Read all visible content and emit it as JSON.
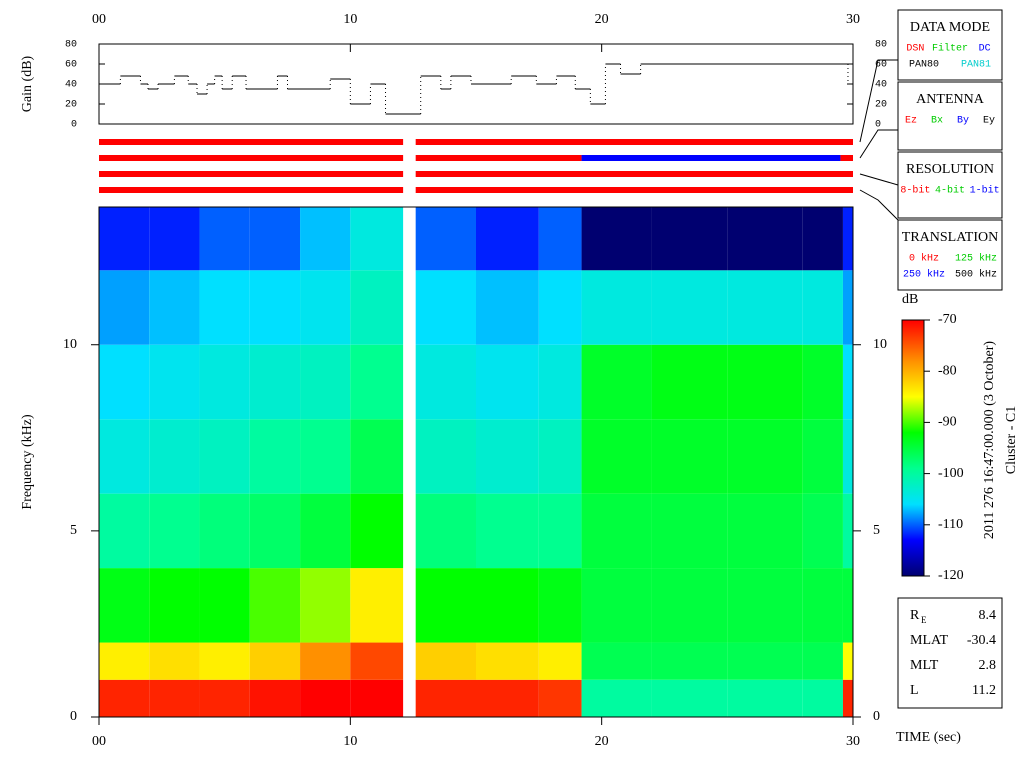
{
  "chart_data": [
    {
      "type": "line",
      "ylabel": "Gain (dB)",
      "x": [
        0,
        0.85,
        1.65,
        1.95,
        2.35,
        3.0,
        3.55,
        3.9,
        4.3,
        4.6,
        4.9,
        5.3,
        5.85,
        7.1,
        7.5,
        9.2,
        10.0,
        10.8,
        11.4,
        12.8,
        13.6,
        14.0,
        14.8,
        16.4,
        17.4,
        18.2,
        18.95,
        19.55,
        20.15,
        20.75,
        21.55,
        29.8
      ],
      "values": [
        40,
        48,
        40,
        35,
        40,
        48,
        40,
        30,
        40,
        48,
        35,
        48,
        35,
        48,
        35,
        45,
        20,
        40,
        10,
        48,
        35,
        48,
        40,
        48,
        40,
        48,
        35,
        20,
        60,
        50,
        60,
        40
      ],
      "color": "#000000",
      "xlim": [
        0,
        30
      ],
      "xticks": [
        {
          "value": 0,
          "label": "00"
        },
        10,
        20,
        30
      ],
      "ylim": [
        0,
        80
      ],
      "yticks": [
        0,
        20,
        40,
        60,
        80
      ]
    },
    {
      "type": "heatmap",
      "ylabel": "Frequency (kHz)",
      "xlabel": "TIME (sec)",
      "xlim": [
        0,
        30
      ],
      "xticks": [
        {
          "value": 0,
          "label": "00"
        },
        10,
        20,
        30
      ],
      "ylim": [
        0,
        13.7
      ],
      "yticks": [
        0,
        5,
        10
      ],
      "x_bins": [
        0,
        2,
        4,
        6,
        8,
        10,
        12.1,
        12.6,
        15,
        17.5,
        19.2,
        22,
        25,
        28,
        29.6,
        30
      ],
      "y_bins": [
        0,
        1,
        2,
        4,
        6,
        8,
        10,
        12,
        13.7
      ],
      "z": [
        [
          -72,
          -84,
          -93,
          -100,
          -104,
          -106,
          -108,
          -112
        ],
        [
          -72,
          -83,
          -92,
          -99,
          -103,
          -105,
          -107,
          -112
        ],
        [
          -72,
          -84,
          -92,
          -98,
          -102,
          -104,
          -106,
          -110
        ],
        [
          -71,
          -82,
          -90,
          -97,
          -100,
          -103,
          -106,
          -110
        ],
        [
          -70,
          -78,
          -88,
          -95,
          -99,
          -102,
          -105,
          -107
        ],
        [
          -70,
          -74,
          -84,
          -92,
          -96,
          -99,
          -102,
          -104
        ],
        [
          null,
          null,
          null,
          null,
          null,
          null,
          null,
          null
        ],
        [
          -72,
          -82,
          -92,
          -98,
          -102,
          -104,
          -106,
          -110
        ],
        [
          -72,
          -83,
          -92,
          -99,
          -103,
          -105,
          -107,
          -112
        ],
        [
          -73,
          -84,
          -93,
          -99,
          -102,
          -104,
          -106,
          -110
        ],
        [
          -100,
          -96,
          -95,
          -95,
          -94,
          -94,
          -104,
          -120
        ],
        [
          -100,
          -96,
          -95,
          -95,
          -94,
          -93,
          -104,
          -120
        ],
        [
          -100,
          -96,
          -95,
          -95,
          -94,
          -93,
          -104,
          -120
        ],
        [
          -100,
          -96,
          -95,
          -96,
          -95,
          -94,
          -104,
          -120
        ],
        [
          -72,
          -85,
          -95,
          -100,
          -104,
          -106,
          -108,
          -112
        ]
      ],
      "zlabel": "dB",
      "zlim": [
        -120,
        -70
      ],
      "zticks": [
        -70,
        -80,
        -90,
        -100,
        -110,
        -120
      ],
      "colormap": [
        [
          -120,
          "#000070"
        ],
        [
          -113,
          "#0000ff"
        ],
        [
          -106,
          "#00e0ff"
        ],
        [
          -99,
          "#00ff90"
        ],
        [
          -92,
          "#00ff00"
        ],
        [
          -85,
          "#ffff00"
        ],
        [
          -78,
          "#ff9000"
        ],
        [
          -70,
          "#ff0000"
        ]
      ]
    }
  ],
  "status_bars": [
    {
      "segments": [
        {
          "start": 0,
          "end": 12.1,
          "color": "#ff0000"
        },
        {
          "start": 12.6,
          "end": 30,
          "color": "#ff0000"
        }
      ]
    },
    {
      "segments": [
        {
          "start": 0,
          "end": 12.1,
          "color": "#ff0000"
        },
        {
          "start": 12.6,
          "end": 19.2,
          "color": "#ff0000"
        },
        {
          "start": 19.2,
          "end": 29.5,
          "color": "#0000ff"
        },
        {
          "start": 29.5,
          "end": 30,
          "color": "#ff0000"
        }
      ]
    },
    {
      "segments": [
        {
          "start": 0,
          "end": 12.1,
          "color": "#ff0000"
        },
        {
          "start": 12.6,
          "end": 30,
          "color": "#ff0000"
        }
      ]
    },
    {
      "segments": [
        {
          "start": 0,
          "end": 12.1,
          "color": "#ff0000"
        },
        {
          "start": 12.6,
          "end": 30,
          "color": "#ff0000"
        }
      ]
    }
  ],
  "legend_boxes": [
    {
      "title": "DATA MODE",
      "rows": [
        [
          {
            "text": "DSN",
            "color": "#ff0000"
          },
          {
            "text": "Filter",
            "color": "#00cc00"
          },
          {
            "text": "DC",
            "color": "#0000ff"
          }
        ],
        [
          {
            "text": "PAN80",
            "color": "#000000"
          },
          {
            "text": "PAN81",
            "color": "#00cccc"
          }
        ]
      ]
    },
    {
      "title": "ANTENNA",
      "rows": [
        [
          {
            "text": "Ez",
            "color": "#ff0000"
          },
          {
            "text": "Bx",
            "color": "#00cc00"
          },
          {
            "text": "By",
            "color": "#0000ff"
          },
          {
            "text": "Ey",
            "color": "#000000"
          }
        ]
      ]
    },
    {
      "title": "RESOLUTION",
      "rows": [
        [
          {
            "text": "8-bit",
            "color": "#ff0000"
          },
          {
            "text": "4-bit",
            "color": "#00cc00"
          },
          {
            "text": "1-bit",
            "color": "#0000ff"
          }
        ]
      ]
    },
    {
      "title": "TRANSLATION",
      "rows": [
        [
          {
            "text": "0 kHz",
            "color": "#ff0000"
          },
          {
            "text": "125 kHz",
            "color": "#00cc00"
          }
        ],
        [
          {
            "text": "250 kHz",
            "color": "#0000ff"
          },
          {
            "text": "500 kHz",
            "color": "#000000"
          }
        ]
      ]
    }
  ],
  "stamp": "2011 276 16:47:00.000 (3 October)",
  "spacecraft": "Cluster - C1",
  "orbit_info": [
    {
      "label": "R",
      "sub": "E",
      "value": 8.4
    },
    {
      "label": "MLAT",
      "value": -30.4
    },
    {
      "label": "MLT",
      "value": 2.8
    },
    {
      "label": "L",
      "value": 11.2
    }
  ]
}
